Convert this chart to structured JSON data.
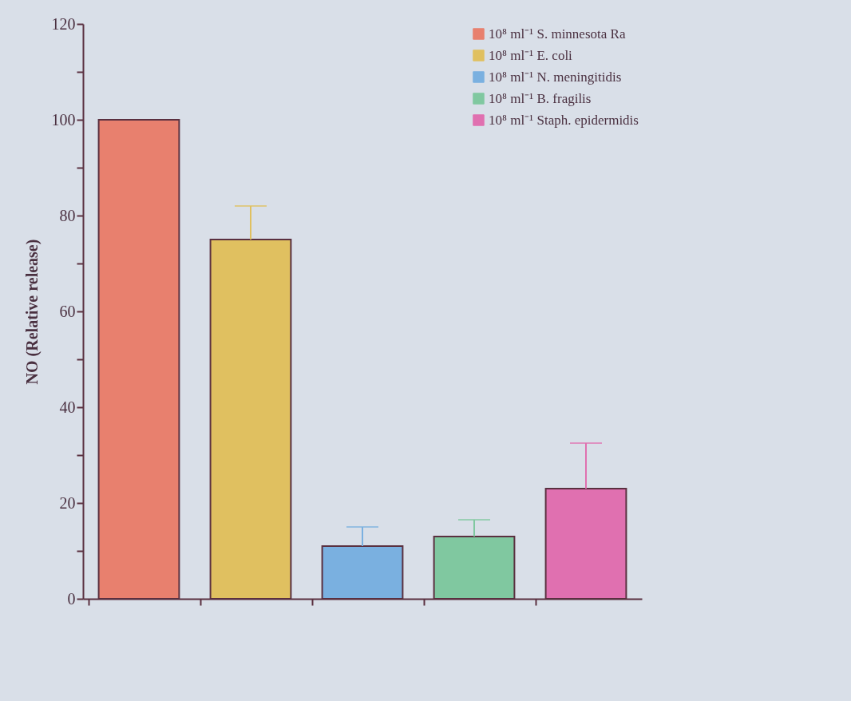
{
  "chart_data": {
    "type": "bar",
    "ylabel": "NO (Relative release)",
    "categories": [
      null,
      null,
      null,
      null,
      null
    ],
    "series": [
      {
        "name": "10⁸ ml⁻¹ S. minnesota Ra",
        "color": "#e8806e",
        "values": [
          100,
          null,
          null,
          null,
          null
        ],
        "errors": [
          null,
          null,
          null,
          null,
          null
        ]
      },
      {
        "name": "10⁸ ml⁻¹ E. coli",
        "color": "#e0c060",
        "values": [
          null,
          75,
          null,
          null,
          null
        ],
        "errors": [
          null,
          7,
          null,
          null,
          null
        ]
      },
      {
        "name": "10⁸ ml⁻¹ N. meningitidis",
        "color": "#7ab0e0",
        "values": [
          null,
          null,
          11,
          null,
          null
        ],
        "errors": [
          null,
          null,
          4,
          null,
          null
        ]
      },
      {
        "name": "10⁸ ml⁻¹ B. fragilis",
        "color": "#80c8a0",
        "values": [
          null,
          null,
          null,
          13,
          null
        ],
        "errors": [
          null,
          null,
          null,
          3.5,
          null
        ]
      },
      {
        "name": "10⁸ ml⁻¹ Staph. epidermidis",
        "color": "#e070b0",
        "values": [
          null,
          null,
          null,
          null,
          23
        ],
        "errors": [
          null,
          null,
          null,
          null,
          9.5
        ]
      }
    ],
    "ylim": [
      0,
      120
    ],
    "yticks": [
      0,
      {
        "value": 10,
        "label": null
      },
      20,
      {
        "value": 30,
        "label": null
      },
      40,
      {
        "value": 50,
        "label": null
      },
      60,
      {
        "value": 70,
        "label": null
      },
      80,
      {
        "value": 90,
        "label": null
      },
      100,
      {
        "value": 110,
        "label": null
      },
      120
    ],
    "grid": false,
    "legend": "top right",
    "tick_labels": "y"
  }
}
